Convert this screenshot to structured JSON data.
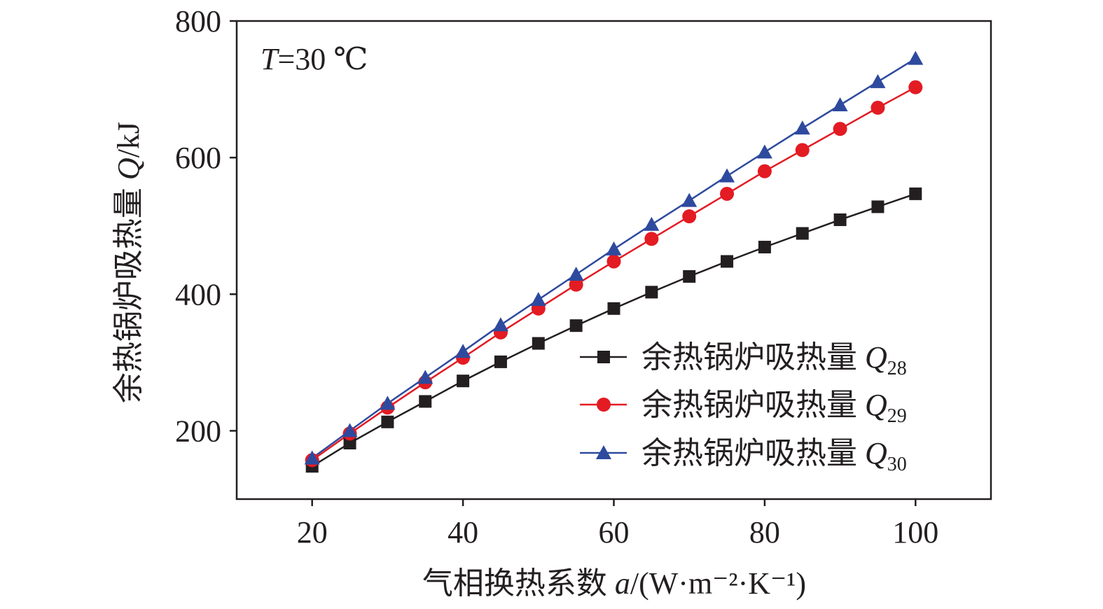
{
  "chart_data": {
    "type": "line",
    "title": "",
    "annotation": {
      "var": "T",
      "text": "=30 ℃"
    },
    "xlabel": {
      "prefix": "气相换热系数 ",
      "var": "a",
      "unit": "/(W·m⁻²·K⁻¹)"
    },
    "ylabel": {
      "prefix": "余热锅炉吸热量 ",
      "var": "Q",
      "unit": "/kJ"
    },
    "xlim": [
      10,
      110
    ],
    "ylim": [
      100,
      800
    ],
    "xticks": [
      20,
      40,
      60,
      80,
      100
    ],
    "yticks": [
      200,
      400,
      600,
      800
    ],
    "grid": false,
    "legend_position": "lower-right",
    "x": [
      20,
      25,
      30,
      35,
      40,
      45,
      50,
      55,
      60,
      65,
      70,
      75,
      80,
      85,
      90,
      95,
      100
    ],
    "series": [
      {
        "name": "余热锅炉吸热量 ",
        "name_var": "Q",
        "name_sub": "28",
        "color": "#231f20",
        "marker": "square",
        "values": [
          148,
          182,
          213,
          243,
          273,
          301,
          328,
          354,
          379,
          403,
          426,
          448,
          469,
          489,
          509,
          528,
          547
        ]
      },
      {
        "name": "余热锅炉吸热量 ",
        "name_var": "Q",
        "name_sub": "29",
        "color": "#e31b23",
        "marker": "circle",
        "values": [
          157,
          196,
          234,
          271,
          307,
          344,
          379,
          414,
          448,
          481,
          514,
          547,
          580,
          611,
          642,
          673,
          703
        ]
      },
      {
        "name": "余热锅炉吸热量 ",
        "name_var": "Q",
        "name_sub": "30",
        "color": "#2e4a9e",
        "marker": "triangle",
        "values": [
          160,
          200,
          240,
          278,
          316,
          355,
          392,
          429,
          466,
          502,
          537,
          573,
          608,
          643,
          677,
          711,
          745
        ]
      }
    ]
  }
}
